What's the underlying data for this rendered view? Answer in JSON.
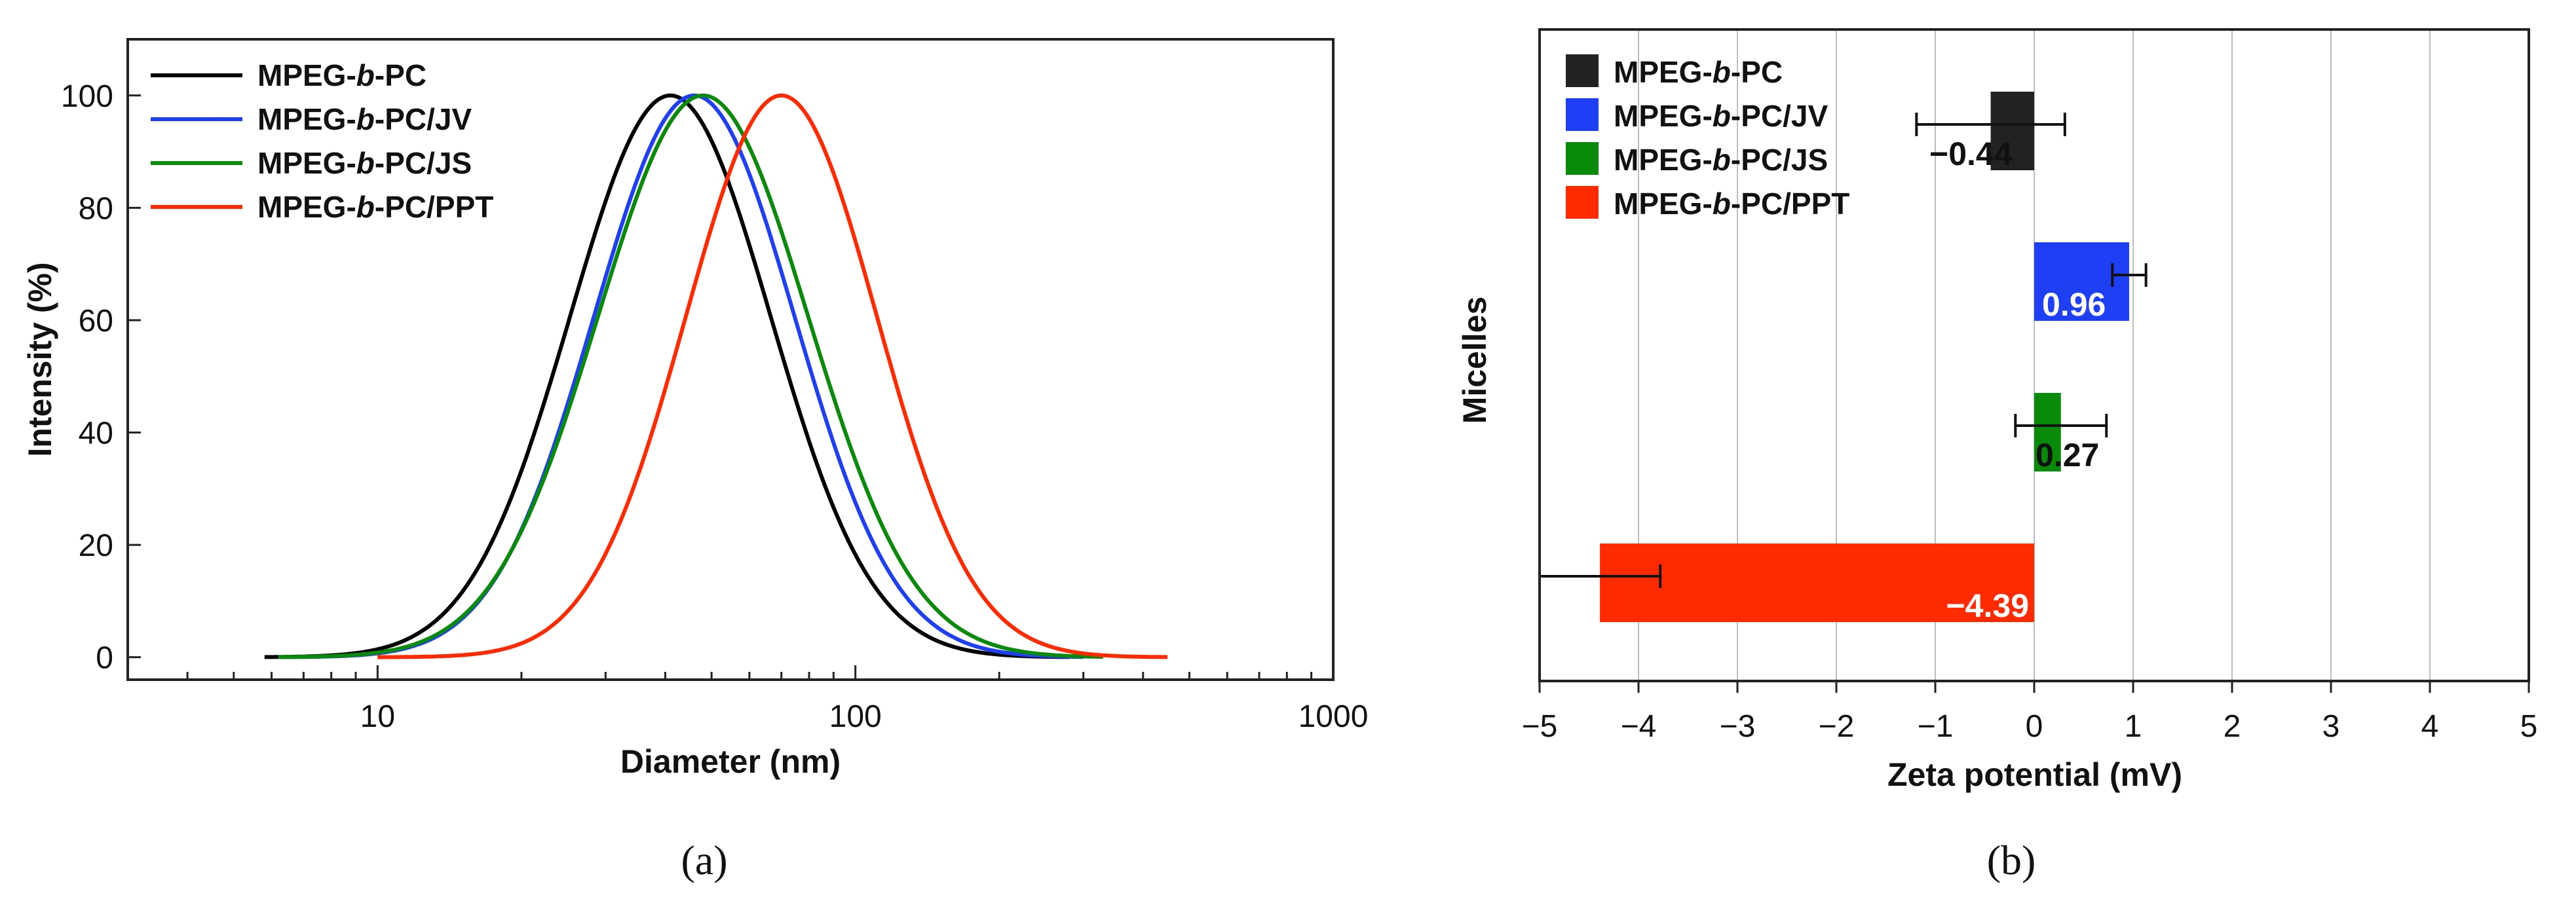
{
  "chart_data": [
    {
      "type": "line",
      "panel": "(a)",
      "xlabel": "Diameter (nm)",
      "ylabel": "Intensity (%)",
      "xscale": "log",
      "xlim": [
        3,
        1000
      ],
      "ylim": [
        -4,
        110
      ],
      "xticks": [
        10,
        100,
        1000
      ],
      "xtick_labels": [
        "10",
        "100",
        "1000"
      ],
      "yticks": [
        0,
        20,
        40,
        60,
        80,
        100
      ],
      "ytick_labels": [
        "0",
        "20",
        "40",
        "60",
        "80",
        "100"
      ],
      "legend_position": "top-left",
      "series": [
        {
          "name_prefix": "MPEG-",
          "name_italic": "b",
          "name_suffix": "-PC",
          "color": "#000000",
          "peak": 41,
          "sigma": 0.21,
          "x_range": [
            5.8,
            280
          ]
        },
        {
          "name_prefix": "MPEG-",
          "name_italic": "b",
          "name_suffix": "-PC/JV",
          "color": "#1f3ff5",
          "peak": 46,
          "sigma": 0.21,
          "x_range": [
            6.2,
            300
          ]
        },
        {
          "name_prefix": "MPEG-",
          "name_italic": "b",
          "name_suffix": "-PC/JS",
          "color": "#0a8a0a",
          "peak": 48,
          "sigma": 0.22,
          "x_range": [
            6.2,
            330
          ]
        },
        {
          "name_prefix": "MPEG-",
          "name_italic": "b",
          "name_suffix": "-PC/PPT",
          "color": "#ff2a00",
          "peak": 70,
          "sigma": 0.2,
          "x_range": [
            10,
            450
          ]
        }
      ]
    },
    {
      "type": "bar",
      "orientation": "horizontal",
      "panel": "(b)",
      "xlabel": "Zeta potential (mV)",
      "ylabel": "Micelles",
      "xlim": [
        -5,
        5
      ],
      "xticks": [
        -5,
        -4,
        -3,
        -2,
        -1,
        0,
        1,
        2,
        3,
        4,
        5
      ],
      "xtick_labels": [
        "−5",
        "−4",
        "−3",
        "−2",
        "−1",
        "0",
        "1",
        "2",
        "3",
        "4",
        "5"
      ],
      "grid": "vertical",
      "legend_position": "top-left",
      "bars": [
        {
          "name_prefix": "MPEG-",
          "name_italic": "b",
          "name_suffix": "-PC",
          "value": -0.44,
          "error": 0.75,
          "label": "−0.44",
          "color": "#222222"
        },
        {
          "name_prefix": "MPEG-",
          "name_italic": "b",
          "name_suffix": "-PC/JV",
          "value": 0.96,
          "error": 0.17,
          "label": "0.96",
          "color": "#1f3ff5"
        },
        {
          "name_prefix": "MPEG-",
          "name_italic": "b",
          "name_suffix": "-PC/JS",
          "value": 0.27,
          "error": 0.46,
          "label": "0.27",
          "color": "#0a8a0a"
        },
        {
          "name_prefix": "MPEG-",
          "name_italic": "b",
          "name_suffix": "-PC/PPT",
          "value": -4.39,
          "error": 0.61,
          "label": "−4.39",
          "color": "#ff2a00"
        }
      ]
    }
  ]
}
